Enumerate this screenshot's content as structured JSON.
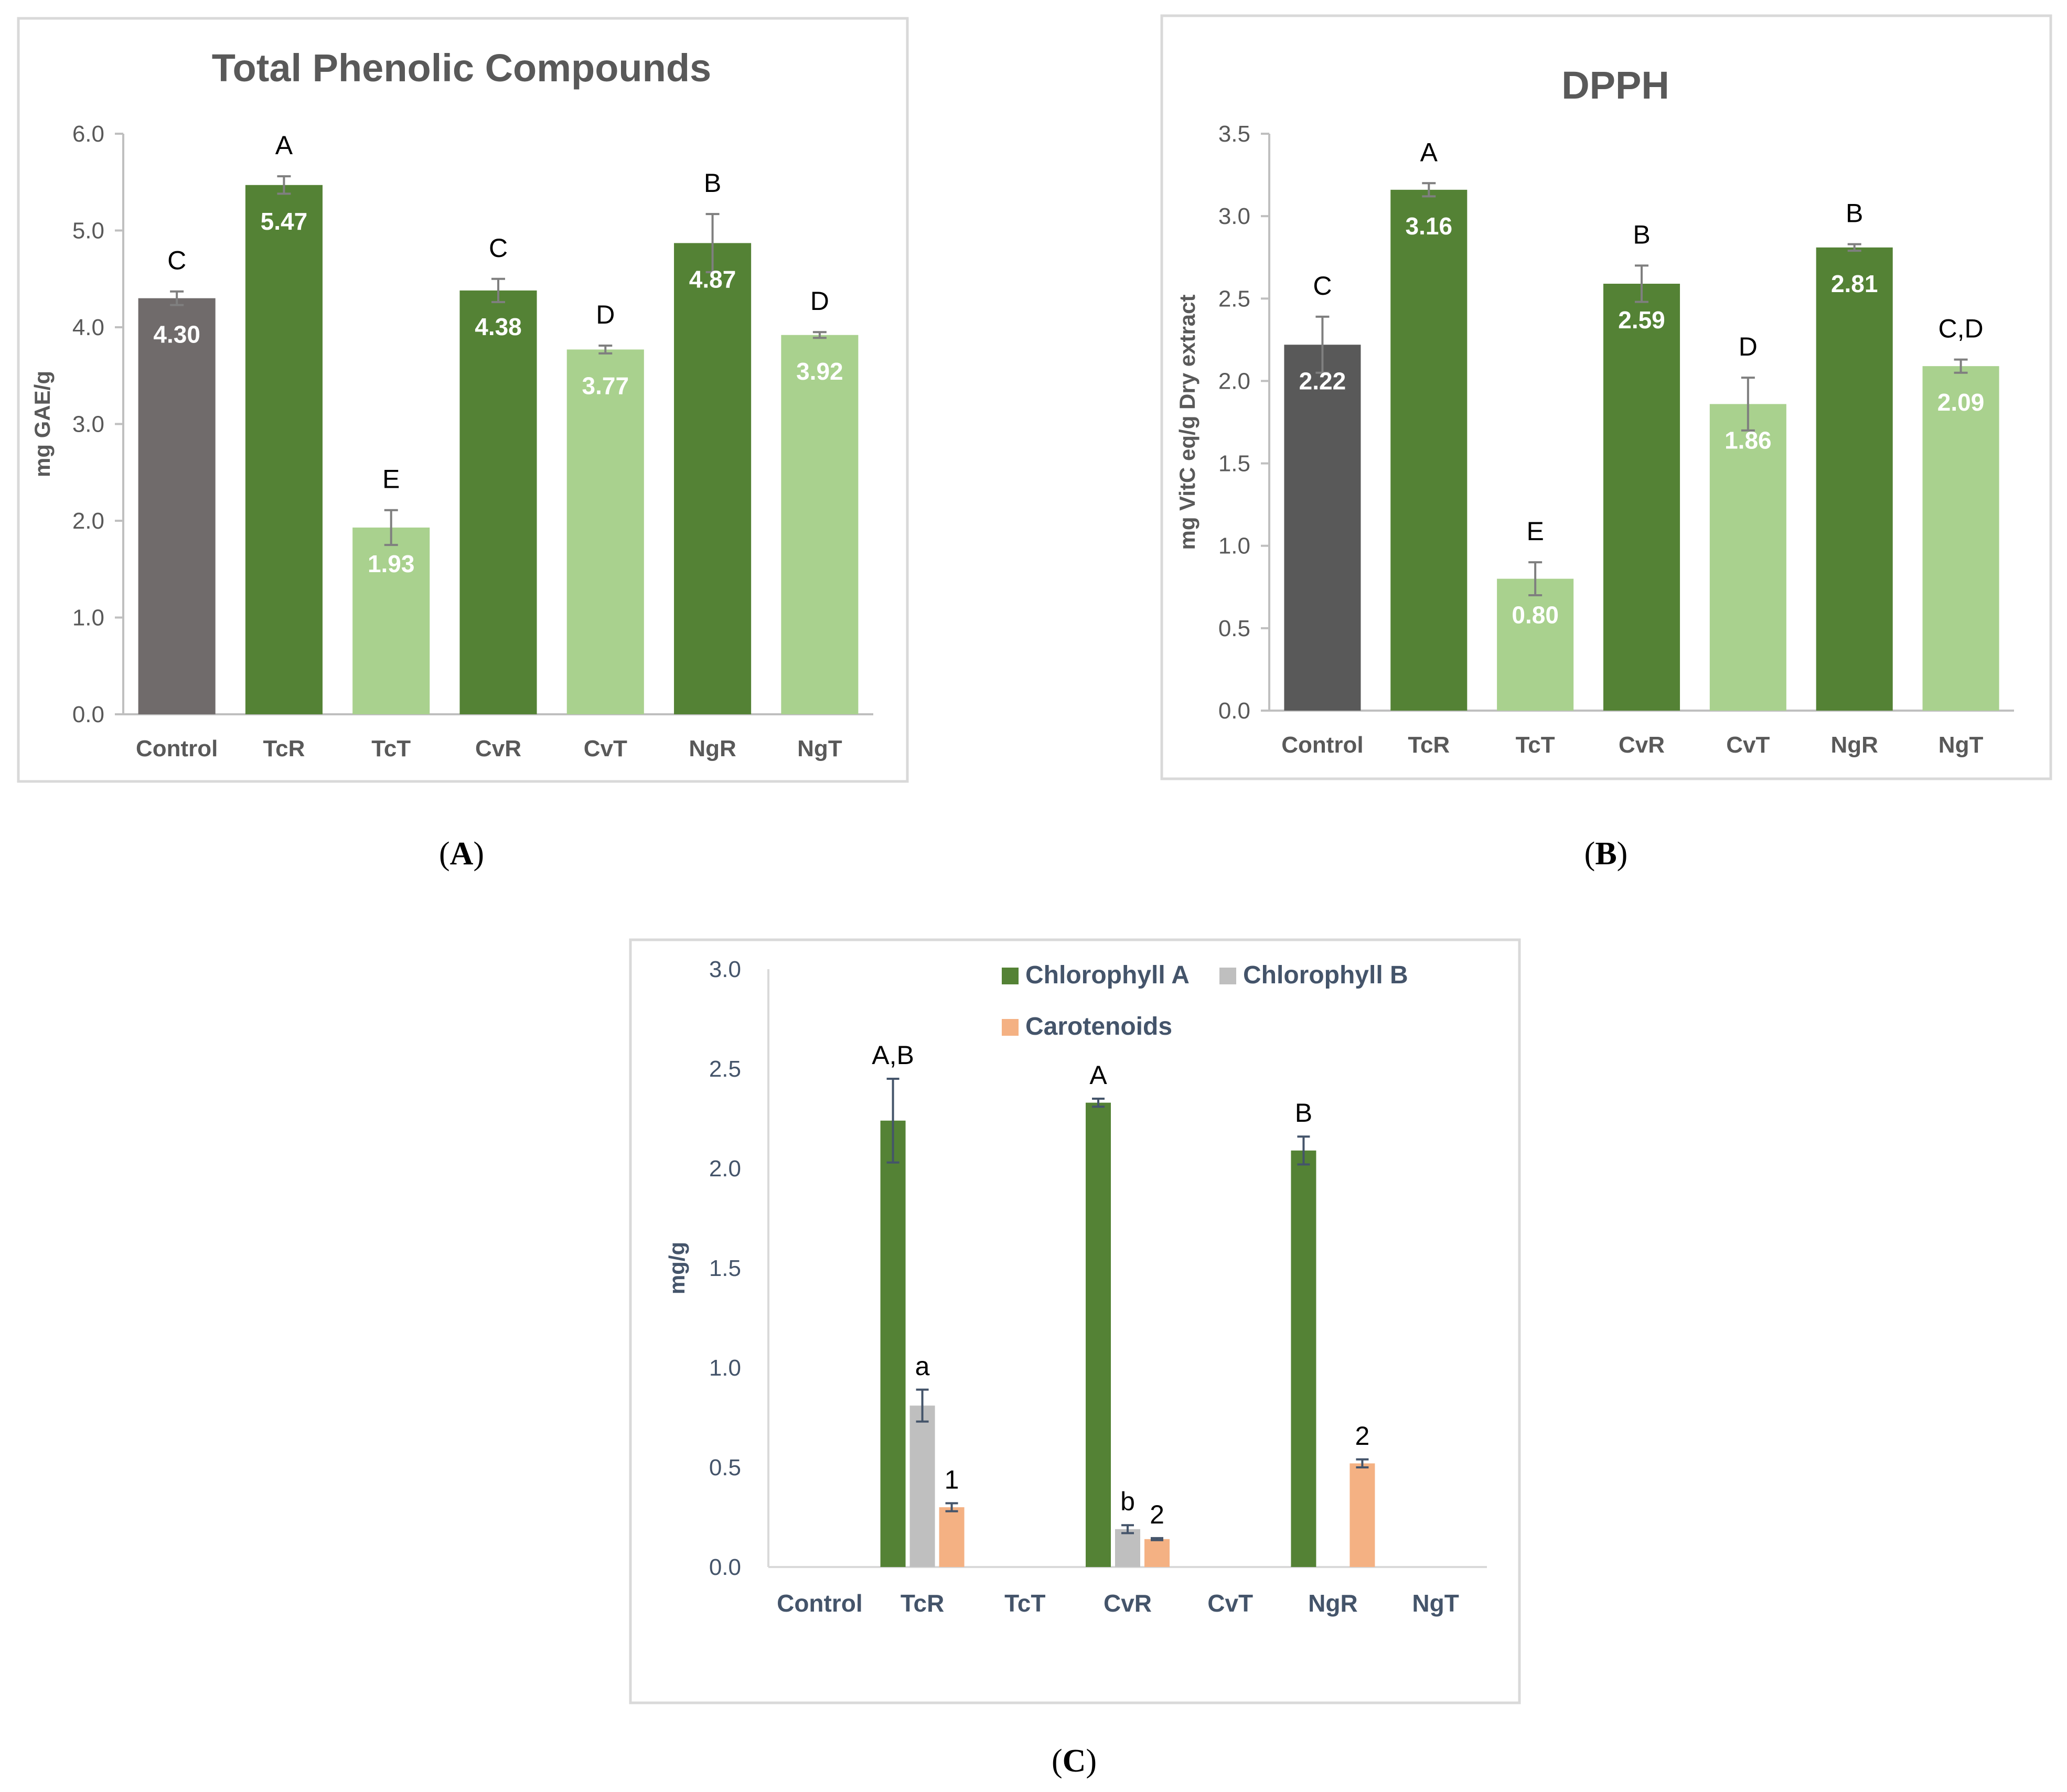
{
  "panel_captions": [
    "A",
    "B",
    "C"
  ],
  "chart_data": [
    {
      "id": "A",
      "type": "bar",
      "title": "Total Phenolic Compounds",
      "xlabel": "",
      "ylabel": "mg GAE/g",
      "ylim": [
        0,
        6
      ],
      "yticks": [
        "0.0",
        "1.0",
        "2.0",
        "3.0",
        "4.0",
        "5.0",
        "6.0"
      ],
      "categories": [
        "Control",
        "TcR",
        "TcT",
        "CvR",
        "CvT",
        "NgR",
        "NgT"
      ],
      "values": [
        4.3,
        5.47,
        1.93,
        4.38,
        3.77,
        4.87,
        3.92
      ],
      "value_labels": [
        "4.30",
        "5.47",
        "1.93",
        "4.38",
        "3.77",
        "4.87",
        "3.92"
      ],
      "errors": [
        0.07,
        0.09,
        0.18,
        0.12,
        0.04,
        0.3,
        0.03
      ],
      "significance": [
        "C",
        "A",
        "E",
        "C",
        "D",
        "B",
        "D"
      ],
      "colors": [
        "#706b6b",
        "#548235",
        "#a9d18e",
        "#548235",
        "#a9d18e",
        "#548235",
        "#a9d18e"
      ],
      "grid": false
    },
    {
      "id": "B",
      "type": "bar",
      "title": "DPPH",
      "xlabel": "",
      "ylabel": "mg VitC eq/g Dry extract",
      "ylim": [
        0,
        3.5
      ],
      "yticks": [
        "0.0",
        "0.5",
        "1.0",
        "1.5",
        "2.0",
        "2.5",
        "3.0",
        "3.5"
      ],
      "categories": [
        "Control",
        "TcR",
        "TcT",
        "CvR",
        "CvT",
        "NgR",
        "NgT"
      ],
      "values": [
        2.22,
        3.16,
        0.8,
        2.59,
        1.86,
        2.81,
        2.09
      ],
      "value_labels": [
        "2.22",
        "3.16",
        "0.80",
        "2.59",
        "1.86",
        "2.81",
        "2.09"
      ],
      "errors": [
        0.17,
        0.04,
        0.1,
        0.11,
        0.16,
        0.02,
        0.04
      ],
      "significance": [
        "C",
        "A",
        "E",
        "B",
        "D",
        "B",
        "C,D"
      ],
      "colors": [
        "#595959",
        "#548235",
        "#a9d18e",
        "#548235",
        "#a9d18e",
        "#548235",
        "#a9d18e"
      ],
      "grid": false
    },
    {
      "id": "C",
      "type": "bar",
      "title": "",
      "xlabel": "",
      "ylabel": "mg/g",
      "ylim": [
        0,
        3
      ],
      "yticks": [
        "0.0",
        "0.5",
        "1.0",
        "1.5",
        "2.0",
        "2.5",
        "3.0"
      ],
      "categories": [
        "Control",
        "TcR",
        "TcT",
        "CvR",
        "CvT",
        "NgR",
        "NgT"
      ],
      "legend_position": "top-right",
      "series": [
        {
          "name": "Chlorophyll A",
          "color": "#548235",
          "values": [
            0,
            2.24,
            0,
            2.33,
            0,
            2.09,
            0
          ],
          "errors": [
            0,
            0.21,
            0,
            0.02,
            0,
            0.07,
            0
          ],
          "significance": [
            "",
            "A,B",
            "",
            "A",
            "",
            "B",
            ""
          ]
        },
        {
          "name": "Chlorophyll B",
          "color": "#bfbfbf",
          "values": [
            0,
            0.81,
            0,
            0.19,
            0,
            0,
            0
          ],
          "errors": [
            0,
            0.08,
            0,
            0.02,
            0,
            0,
            0
          ],
          "significance": [
            "",
            "a",
            "",
            "b",
            "",
            "",
            ""
          ]
        },
        {
          "name": "Carotenoids",
          "color": "#f4b183",
          "values": [
            0,
            0.3,
            0,
            0.14,
            0,
            0.52,
            0
          ],
          "errors": [
            0,
            0.02,
            0,
            0.005,
            0,
            0.02,
            0
          ],
          "significance": [
            "",
            "1",
            "",
            "2",
            "",
            "2",
            ""
          ]
        }
      ],
      "grid": false
    }
  ]
}
